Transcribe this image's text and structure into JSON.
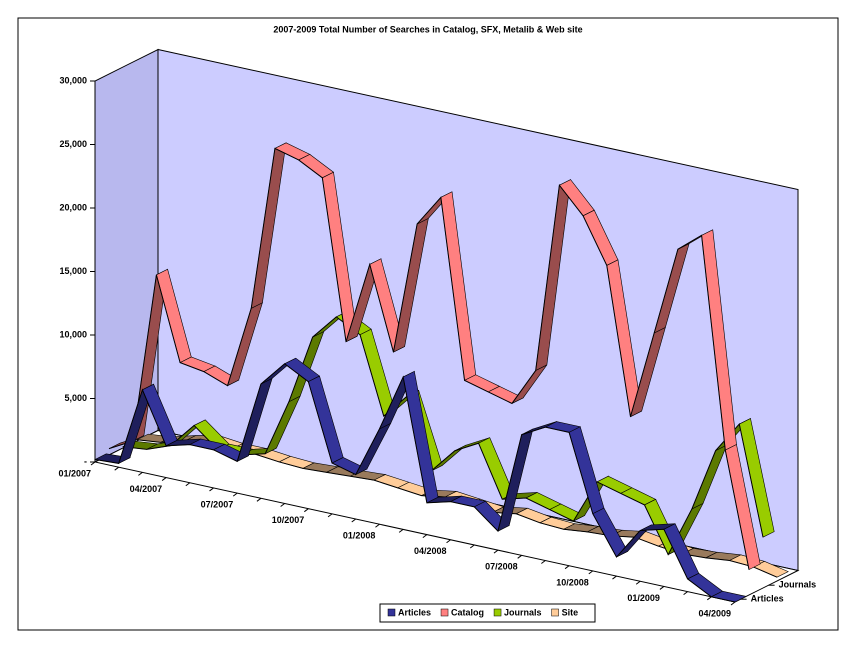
{
  "chart_data": {
    "type": "line3d",
    "title": "2007-2009 Total Number of Searches in Catalog, SFX, Metalib & Web site",
    "categories": [
      "01/2007",
      null,
      null,
      "04/2007",
      null,
      null,
      "07/2007",
      null,
      null,
      "10/2007",
      null,
      null,
      "01/2008",
      null,
      null,
      "04/2008",
      null,
      null,
      "07/2008",
      null,
      null,
      "10/2008",
      null,
      null,
      "01/2009",
      null,
      null,
      "04/2009"
    ],
    "series": [
      {
        "name": "Articles",
        "color": "#333399",
        "values": [
          200,
          300,
          6500,
          2500,
          3000,
          3000,
          2500,
          9000,
          11000,
          10000,
          4000,
          3500,
          7500,
          12000,
          2500,
          3000,
          3000,
          1500,
          9500,
          10500,
          10500,
          4500,
          1500,
          4000,
          4500,
          1000,
          0,
          0
        ]
      },
      {
        "name": "Catalog",
        "color": "#ff8080",
        "values": [
          500,
          1500,
          15000,
          8500,
          8200,
          7500,
          14000,
          27000,
          26500,
          25500,
          13000,
          19500,
          13000,
          23500,
          26000,
          12000,
          11500,
          11000,
          14000,
          29000,
          27000,
          23500,
          12000,
          19000,
          26000,
          27500,
          11000,
          2000
        ]
      },
      {
        "name": "Journals",
        "color": "#99cc00",
        "values": [
          100,
          300,
          1000,
          3000,
          1500,
          1500,
          2000,
          6500,
          12000,
          14000,
          13000,
          7000,
          9000,
          3500,
          5500,
          6500,
          2500,
          3000,
          2500,
          2000,
          5500,
          5000,
          4500,
          1000,
          5000,
          10000,
          12500,
          4000
        ]
      },
      {
        "name": "Site",
        "color": "#ffcc99",
        "values": [
          100,
          300,
          800,
          1200,
          1000,
          1000,
          800,
          700,
          800,
          900,
          1000,
          800,
          600,
          900,
          700,
          500,
          800,
          500,
          400,
          600,
          700,
          1000,
          700,
          500,
          600,
          800,
          700,
          300
        ]
      }
    ],
    "ylim": [
      0,
      30000
    ],
    "yticks": [
      {
        "value": 0,
        "label": "-"
      },
      {
        "value": 5000,
        "label": "5,000"
      },
      {
        "value": 10000,
        "label": "10,000"
      },
      {
        "value": 15000,
        "label": "15,000"
      },
      {
        "value": 20000,
        "label": "20,000"
      },
      {
        "value": 25000,
        "label": "25,000"
      },
      {
        "value": 30000,
        "label": "30,000"
      }
    ],
    "legend": "bottom"
  }
}
